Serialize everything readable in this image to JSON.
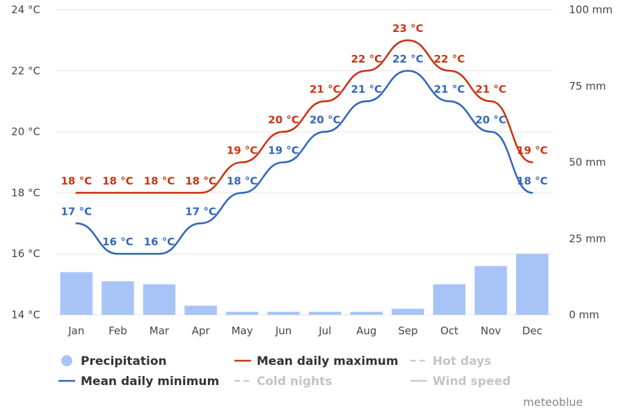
{
  "chart_data": {
    "type": "bar+line",
    "categories": [
      "Jan",
      "Feb",
      "Mar",
      "Apr",
      "May",
      "Jun",
      "Jul",
      "Aug",
      "Sep",
      "Oct",
      "Nov",
      "Dec"
    ],
    "y_left": {
      "ticks": [
        "14 °C",
        "16 °C",
        "18 °C",
        "20 °C",
        "22 °C",
        "24 °C"
      ],
      "range": [
        14,
        24
      ],
      "unit": "°C"
    },
    "y_right": {
      "ticks": [
        "0 mm",
        "25 mm",
        "50 mm",
        "75 mm",
        "100 mm"
      ],
      "range": [
        0,
        100
      ],
      "unit": "mm"
    },
    "grid": true,
    "series": [
      {
        "name": "Precipitation",
        "kind": "bar",
        "axis": "right",
        "color": "#a8c4f7",
        "values": [
          14,
          11,
          10,
          3,
          1,
          1,
          1,
          1,
          2,
          10,
          16,
          20
        ]
      },
      {
        "name": "Mean daily maximum",
        "kind": "line",
        "axis": "left",
        "color": "#cc3311",
        "values": [
          18,
          18,
          18,
          18,
          19,
          20,
          21,
          22,
          23,
          22,
          21,
          19
        ],
        "labels": [
          "18 °C",
          "18 °C",
          "18 °C",
          "18 °C",
          "19 °C",
          "20 °C",
          "21 °C",
          "22 °C",
          "23 °C",
          "22 °C",
          "21 °C",
          "19 °C"
        ]
      },
      {
        "name": "Mean daily minimum",
        "kind": "line",
        "axis": "left",
        "color": "#3366bb",
        "values": [
          17,
          16,
          16,
          17,
          18,
          19,
          20,
          21,
          22,
          21,
          20,
          18
        ],
        "labels": [
          "17 °C",
          "16 °C",
          "16 °C",
          "17 °C",
          "18 °C",
          "19 °C",
          "20 °C",
          "21 °C",
          "22 °C",
          "21 °C",
          "20 °C",
          "18 °C"
        ]
      }
    ],
    "legend": {
      "placement": "bottom",
      "items": [
        {
          "label": "Precipitation",
          "symbol": "circle",
          "color": "#a8c4f7",
          "active": true
        },
        {
          "label": "Mean daily maximum",
          "symbol": "line",
          "color": "#cc3311",
          "active": true
        },
        {
          "label": "Hot days",
          "symbol": "dash",
          "color": "#cccccc",
          "active": false
        },
        {
          "label": "Mean daily minimum",
          "symbol": "line",
          "color": "#3366bb",
          "active": true
        },
        {
          "label": "Cold nights",
          "symbol": "dash",
          "color": "#cccccc",
          "active": false
        },
        {
          "label": "Wind speed",
          "symbol": "line",
          "color": "#cccccc",
          "active": false
        }
      ]
    },
    "credit": "meteoblue"
  }
}
